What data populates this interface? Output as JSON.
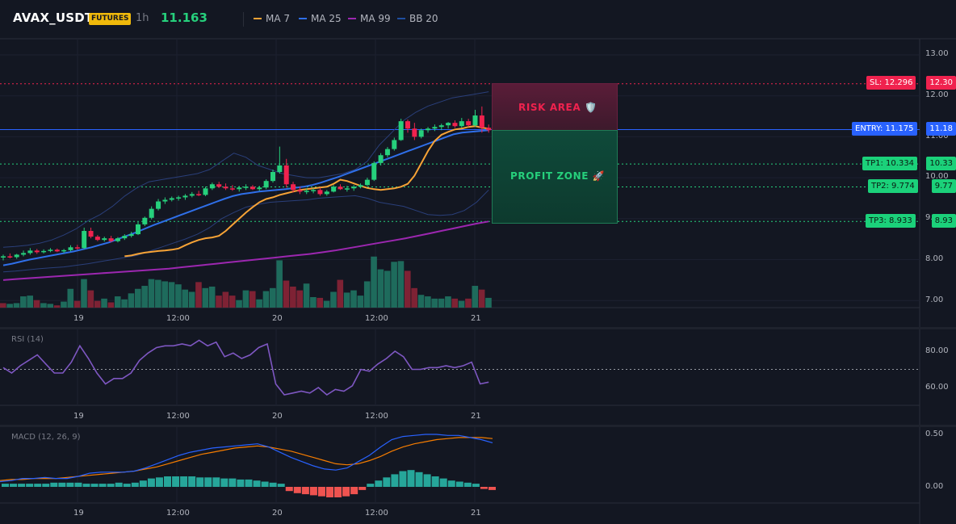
{
  "header": {
    "symbol": "AVAX_USDT",
    "badge": "FUTURES",
    "timeframe": "1h",
    "last_price": "11.163",
    "legend": [
      {
        "name": "MA 7",
        "color": "#f7a336"
      },
      {
        "name": "MA 25",
        "color": "#2f6fe9"
      },
      {
        "name": "MA 99",
        "color": "#9c27b0"
      },
      {
        "name": "BB 20",
        "color": "#1f4ea0"
      }
    ]
  },
  "colors": {
    "up": "#26d07c",
    "down": "#f0224e",
    "vol_up": "#1e6b5c",
    "vol_down": "#7e2234",
    "ma7": "#f7a336",
    "ma25": "#2f6fe9",
    "ma99": "#9c27b0",
    "bb": "#2a3f7a",
    "rsi": "#7e57c2",
    "macd": "#2962ff",
    "signal": "#f57c00",
    "hist_up": "#26a69a",
    "hist_down": "#ef5350"
  },
  "price_axis": {
    "ticks": [
      "13.00",
      "12.00",
      "11.00",
      "10.00",
      "9.00",
      "8.00",
      "7.00"
    ]
  },
  "time_axis": {
    "ticks": [
      "19",
      "12:00",
      "20",
      "12:00",
      "21"
    ]
  },
  "zones": {
    "risk_label": "RISK AREA 🛡️",
    "profit_label": "PROFIT ZONE 🚀"
  },
  "levels": {
    "sl": {
      "label": "SL: 12.296",
      "value": "12.30"
    },
    "entry": {
      "label": "ENTRY: 11.175",
      "value": "11.18"
    },
    "tp1": {
      "label": "TP1: 10.334",
      "value": "10.33"
    },
    "tp2": {
      "label": "TP2: 9.774",
      "value": "9.77"
    },
    "tp3": {
      "label": "TP3: 8.933",
      "value": "8.93"
    }
  },
  "rsi": {
    "title": "RSI (14)",
    "ticks": [
      "80.00",
      "60.00"
    ]
  },
  "macd": {
    "title": "MACD (12, 26, 9)",
    "ticks": [
      "0.50",
      "0.00"
    ]
  },
  "chart_data": {
    "type": "candlestick",
    "interval": "1h",
    "ylim": [
      6.9,
      13.1
    ],
    "candles": [
      [
        8.05,
        8.12,
        7.98,
        8.08
      ],
      [
        8.08,
        8.15,
        8.03,
        8.06
      ],
      [
        8.06,
        8.14,
        8.02,
        8.12
      ],
      [
        8.12,
        8.22,
        8.08,
        8.16
      ],
      [
        8.16,
        8.28,
        8.12,
        8.22
      ],
      [
        8.22,
        8.26,
        8.14,
        8.18
      ],
      [
        8.18,
        8.25,
        8.15,
        8.21
      ],
      [
        8.21,
        8.28,
        8.18,
        8.24
      ],
      [
        8.24,
        8.27,
        8.18,
        8.2
      ],
      [
        8.2,
        8.26,
        8.16,
        8.23
      ],
      [
        8.23,
        8.35,
        8.2,
        8.3
      ],
      [
        8.3,
        8.36,
        8.24,
        8.28
      ],
      [
        8.28,
        8.78,
        8.26,
        8.7
      ],
      [
        8.7,
        8.78,
        8.52,
        8.56
      ],
      [
        8.56,
        8.6,
        8.45,
        8.48
      ],
      [
        8.48,
        8.56,
        8.44,
        8.52
      ],
      [
        8.52,
        8.58,
        8.42,
        8.45
      ],
      [
        8.45,
        8.55,
        8.42,
        8.52
      ],
      [
        8.52,
        8.62,
        8.48,
        8.58
      ],
      [
        8.58,
        8.68,
        8.54,
        8.62
      ],
      [
        8.62,
        8.92,
        8.6,
        8.86
      ],
      [
        8.86,
        9.05,
        8.82,
        9.02
      ],
      [
        9.02,
        9.3,
        8.98,
        9.24
      ],
      [
        9.24,
        9.48,
        9.2,
        9.42
      ],
      [
        9.42,
        9.52,
        9.36,
        9.46
      ],
      [
        9.46,
        9.54,
        9.42,
        9.5
      ],
      [
        9.5,
        9.56,
        9.44,
        9.52
      ],
      [
        9.52,
        9.6,
        9.46,
        9.56
      ],
      [
        9.56,
        9.65,
        9.52,
        9.6
      ],
      [
        9.6,
        9.68,
        9.55,
        9.58
      ],
      [
        9.58,
        9.78,
        9.55,
        9.74
      ],
      [
        9.74,
        9.88,
        9.7,
        9.84
      ],
      [
        9.84,
        9.9,
        9.75,
        9.78
      ],
      [
        9.78,
        9.86,
        9.7,
        9.74
      ],
      [
        9.74,
        9.82,
        9.68,
        9.72
      ],
      [
        9.72,
        9.8,
        9.66,
        9.76
      ],
      [
        9.76,
        9.84,
        9.7,
        9.78
      ],
      [
        9.78,
        9.82,
        9.7,
        9.72
      ],
      [
        9.72,
        9.8,
        9.68,
        9.76
      ],
      [
        9.76,
        9.96,
        9.72,
        9.92
      ],
      [
        9.92,
        10.2,
        9.88,
        10.14
      ],
      [
        10.14,
        10.76,
        10.1,
        10.3
      ],
      [
        10.3,
        10.46,
        9.76,
        9.84
      ],
      [
        9.84,
        9.9,
        9.64,
        9.7
      ],
      [
        9.7,
        9.78,
        9.6,
        9.66
      ],
      [
        9.66,
        9.74,
        9.6,
        9.68
      ],
      [
        9.68,
        9.74,
        9.62,
        9.7
      ],
      [
        9.7,
        9.76,
        9.56,
        9.6
      ],
      [
        9.6,
        9.7,
        9.56,
        9.66
      ],
      [
        9.66,
        9.82,
        9.64,
        9.78
      ],
      [
        9.78,
        9.84,
        9.7,
        9.72
      ],
      [
        9.72,
        9.8,
        9.66,
        9.74
      ],
      [
        9.74,
        9.82,
        9.68,
        9.78
      ],
      [
        9.78,
        9.86,
        9.74,
        9.82
      ],
      [
        9.82,
        10.0,
        9.8,
        9.95
      ],
      [
        9.95,
        10.4,
        9.92,
        10.36
      ],
      [
        10.36,
        10.6,
        10.3,
        10.55
      ],
      [
        10.55,
        10.75,
        10.5,
        10.7
      ],
      [
        10.7,
        10.98,
        10.66,
        10.92
      ],
      [
        10.92,
        11.44,
        10.9,
        11.38
      ],
      [
        11.38,
        11.42,
        11.1,
        11.2
      ],
      [
        11.2,
        11.34,
        10.92,
        11.0
      ],
      [
        11.0,
        11.2,
        10.96,
        11.16
      ],
      [
        11.16,
        11.24,
        11.1,
        11.2
      ],
      [
        11.2,
        11.3,
        11.14,
        11.24
      ],
      [
        11.24,
        11.32,
        11.16,
        11.28
      ],
      [
        11.28,
        11.36,
        11.2,
        11.34
      ],
      [
        11.34,
        11.4,
        11.22,
        11.26
      ],
      [
        11.26,
        11.46,
        11.22,
        11.38
      ],
      [
        11.38,
        11.44,
        11.24,
        11.28
      ],
      [
        11.28,
        11.66,
        11.24,
        11.52
      ],
      [
        11.52,
        11.74,
        11.1,
        11.22
      ],
      [
        11.22,
        11.3,
        11.1,
        11.16
      ]
    ],
    "volume_up": [
      false,
      true,
      true,
      true,
      true,
      false,
      true,
      true,
      false,
      true,
      true,
      false,
      true,
      false,
      false,
      true,
      false,
      true,
      true,
      true,
      true,
      true,
      true,
      true,
      true,
      true,
      true,
      true,
      true,
      false,
      true,
      true,
      false,
      false,
      false,
      true,
      true,
      false,
      true,
      true,
      true,
      true,
      false,
      false,
      false,
      true,
      true,
      false,
      true,
      true,
      false,
      true,
      true,
      true,
      true,
      true,
      true,
      true,
      true,
      true,
      false,
      false,
      true,
      true,
      true,
      true,
      true,
      false,
      true,
      false,
      true,
      false,
      true
    ],
    "volume": [
      0.6,
      0.5,
      0.6,
      1.5,
      1.6,
      1.0,
      0.6,
      0.5,
      0.3,
      0.8,
      2.5,
      0.9,
      3.8,
      2.3,
      0.9,
      1.2,
      0.7,
      1.5,
      1.1,
      1.9,
      2.5,
      2.9,
      3.8,
      3.7,
      3.5,
      3.4,
      3.1,
      2.4,
      2.1,
      3.4,
      2.6,
      2.8,
      1.6,
      2.1,
      1.6,
      1.0,
      2.3,
      2.2,
      1.1,
      2.2,
      2.6,
      6.3,
      3.6,
      2.8,
      2.3,
      3.2,
      1.4,
      1.3,
      0.9,
      2.1,
      3.7,
      2.0,
      2.3,
      1.6,
      3.5,
      6.8,
      5.1,
      4.9,
      6.1,
      6.2,
      4.9,
      2.6,
      1.7,
      1.5,
      1.2,
      1.2,
      1.5,
      1.2,
      0.9,
      1.2,
      2.9,
      2.4,
      1.3
    ],
    "ma7": [
      8.08,
      8.1,
      8.14,
      8.17,
      8.19,
      8.21,
      8.22,
      8.24,
      8.27,
      8.35,
      8.42,
      8.48,
      8.52,
      8.54,
      8.58,
      8.7,
      8.85,
      9.0,
      9.15,
      9.28,
      9.4,
      9.48,
      9.52,
      9.58,
      9.62,
      9.66,
      9.7,
      9.72,
      9.74,
      9.76,
      9.78,
      9.85,
      9.95,
      9.92,
      9.86,
      9.8,
      9.75,
      9.72,
      9.7,
      9.72,
      9.74,
      9.78,
      9.85,
      10.05,
      10.35,
      10.65,
      10.9,
      11.05,
      11.12,
      11.18,
      11.2,
      11.24,
      11.26,
      11.22,
      11.2
    ],
    "ma7_start": 18,
    "ma25": [
      7.86,
      7.9,
      7.95,
      8.0,
      8.04,
      8.08,
      8.12,
      8.16,
      8.2,
      8.25,
      8.3,
      8.36,
      8.42,
      8.5,
      8.58,
      8.66,
      8.75,
      8.84,
      8.92,
      9.0,
      9.08,
      9.16,
      9.24,
      9.32,
      9.4,
      9.48,
      9.55,
      9.6,
      9.63,
      9.66,
      9.68,
      9.7,
      9.72,
      9.75,
      9.78,
      9.82,
      9.88,
      9.95,
      10.02,
      10.1,
      10.18,
      10.26,
      10.34,
      10.42,
      10.5,
      10.58,
      10.66,
      10.74,
      10.82,
      10.9,
      10.98,
      11.06,
      11.1,
      11.12,
      11.14,
      11.16
    ],
    "ma99": [
      7.5,
      7.52,
      7.54,
      7.56,
      7.58,
      7.6,
      7.62,
      7.64,
      7.66,
      7.68,
      7.7,
      7.72,
      7.74,
      7.76,
      7.78,
      7.81,
      7.84,
      7.87,
      7.9,
      7.93,
      7.96,
      7.99,
      8.02,
      8.05,
      8.08,
      8.11,
      8.14,
      8.18,
      8.22,
      8.27,
      8.32,
      8.37,
      8.42,
      8.47,
      8.52,
      8.58,
      8.64,
      8.7,
      8.76,
      8.82,
      8.88,
      8.93
    ],
    "bb_upper": [
      8.3,
      8.32,
      8.35,
      8.4,
      8.48,
      8.6,
      8.75,
      8.95,
      9.1,
      9.3,
      9.55,
      9.75,
      9.9,
      9.95,
      10.0,
      10.05,
      10.1,
      10.2,
      10.4,
      10.6,
      10.5,
      10.3,
      10.2,
      10.1,
      10.05,
      10.0,
      10.0,
      10.05,
      10.1,
      10.2,
      10.4,
      10.8,
      11.1,
      11.4,
      11.6,
      11.75,
      11.85,
      11.95,
      12.0,
      12.05,
      12.1
    ],
    "bb_lower": [
      7.7,
      7.72,
      7.75,
      7.78,
      7.8,
      7.82,
      7.86,
      7.9,
      7.95,
      8.0,
      8.05,
      8.1,
      8.2,
      8.3,
      8.4,
      8.5,
      8.62,
      8.78,
      9.0,
      9.15,
      9.28,
      9.35,
      9.4,
      9.42,
      9.44,
      9.46,
      9.5,
      9.52,
      9.54,
      9.56,
      9.5,
      9.4,
      9.35,
      9.3,
      9.2,
      9.1,
      9.08,
      9.1,
      9.2,
      9.4,
      9.7
    ],
    "rsi": [
      71,
      68,
      72,
      75,
      78,
      73,
      68,
      68,
      74,
      83,
      76,
      68,
      62,
      65,
      65,
      68,
      75,
      79,
      82,
      83,
      83,
      84,
      83,
      86,
      83,
      85,
      77,
      79,
      76,
      78,
      82,
      84,
      62,
      56,
      57,
      58,
      57,
      60,
      56,
      59,
      58,
      61,
      70,
      69,
      73,
      76,
      80,
      77,
      70,
      70,
      71,
      71,
      72,
      71,
      72,
      74,
      62,
      63
    ],
    "macd": [
      0.05,
      0.06,
      0.08,
      0.08,
      0.09,
      0.08,
      0.08,
      0.1,
      0.13,
      0.14,
      0.14,
      0.14,
      0.15,
      0.18,
      0.22,
      0.26,
      0.3,
      0.33,
      0.35,
      0.37,
      0.38,
      0.39,
      0.4,
      0.41,
      0.38,
      0.33,
      0.28,
      0.24,
      0.2,
      0.17,
      0.16,
      0.18,
      0.24,
      0.3,
      0.38,
      0.45,
      0.48,
      0.49,
      0.5,
      0.5,
      0.49,
      0.49,
      0.47,
      0.45,
      0.42
    ],
    "signal": [
      0.06,
      0.07,
      0.07,
      0.08,
      0.08,
      0.08,
      0.09,
      0.1,
      0.11,
      0.12,
      0.13,
      0.14,
      0.15,
      0.17,
      0.19,
      0.22,
      0.25,
      0.28,
      0.31,
      0.33,
      0.35,
      0.37,
      0.38,
      0.39,
      0.38,
      0.36,
      0.34,
      0.31,
      0.28,
      0.25,
      0.22,
      0.21,
      0.22,
      0.25,
      0.29,
      0.34,
      0.38,
      0.41,
      0.43,
      0.45,
      0.46,
      0.47,
      0.47,
      0.47,
      0.46
    ],
    "hist": [
      0.03,
      0.03,
      0.03,
      0.03,
      0.03,
      0.03,
      0.04,
      0.04,
      0.04,
      0.04,
      0.03,
      0.03,
      0.03,
      0.03,
      0.04,
      0.03,
      0.04,
      0.06,
      0.08,
      0.09,
      0.1,
      0.1,
      0.1,
      0.1,
      0.09,
      0.09,
      0.09,
      0.08,
      0.08,
      0.07,
      0.07,
      0.06,
      0.05,
      0.04,
      0.03,
      -0.04,
      -0.06,
      -0.07,
      -0.08,
      -0.09,
      -0.1,
      -0.1,
      -0.09,
      -0.07,
      -0.03,
      0.03,
      0.06,
      0.09,
      0.12,
      0.15,
      0.16,
      0.14,
      0.12,
      0.1,
      0.08,
      0.06,
      0.05,
      0.04,
      0.03,
      -0.02,
      -0.03
    ]
  }
}
